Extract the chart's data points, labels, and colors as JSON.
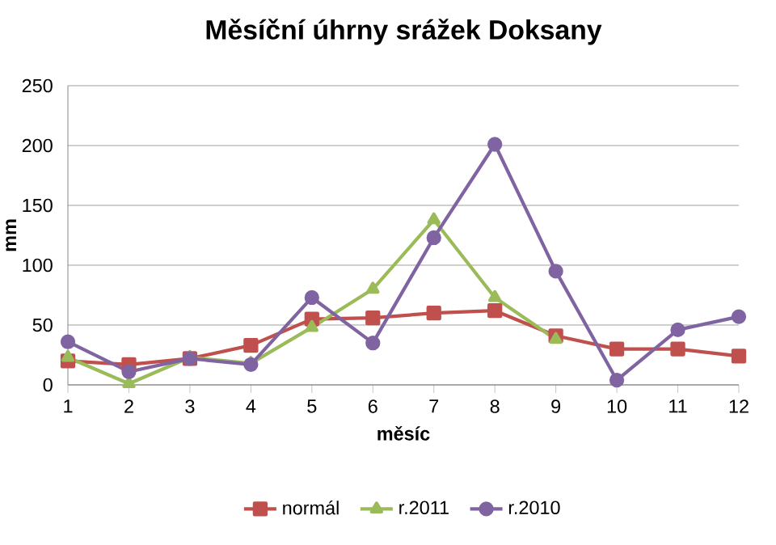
{
  "chart_data": {
    "type": "line",
    "title": "Měsíční úhrny srážek Doksany",
    "xlabel": "měsíc",
    "ylabel": "mm",
    "x": [
      1,
      2,
      3,
      4,
      5,
      6,
      7,
      8,
      9,
      10,
      11,
      12
    ],
    "xlim": [
      1,
      12
    ],
    "xticks": [
      1,
      2,
      3,
      4,
      5,
      6,
      7,
      8,
      9,
      10,
      11,
      12
    ],
    "ylim": [
      0,
      250
    ],
    "yticks": [
      0,
      50,
      100,
      150,
      200,
      250
    ],
    "grid": "y",
    "legend": "bottom",
    "series": [
      {
        "name": "normál",
        "color": "#c0504d",
        "marker": "square",
        "values": [
          20,
          17,
          22,
          33,
          55,
          56,
          60,
          62,
          41,
          30,
          30,
          24
        ]
      },
      {
        "name": "r.2011",
        "color": "#9bbb59",
        "marker": "triangle",
        "values": [
          23,
          1,
          23,
          18,
          48,
          80,
          138,
          73,
          38,
          null,
          null,
          null
        ]
      },
      {
        "name": "r.2010",
        "color": "#8064a2",
        "marker": "circle",
        "values": [
          36,
          11,
          22,
          17,
          73,
          35,
          123,
          201,
          95,
          4,
          46,
          57
        ]
      }
    ]
  }
}
